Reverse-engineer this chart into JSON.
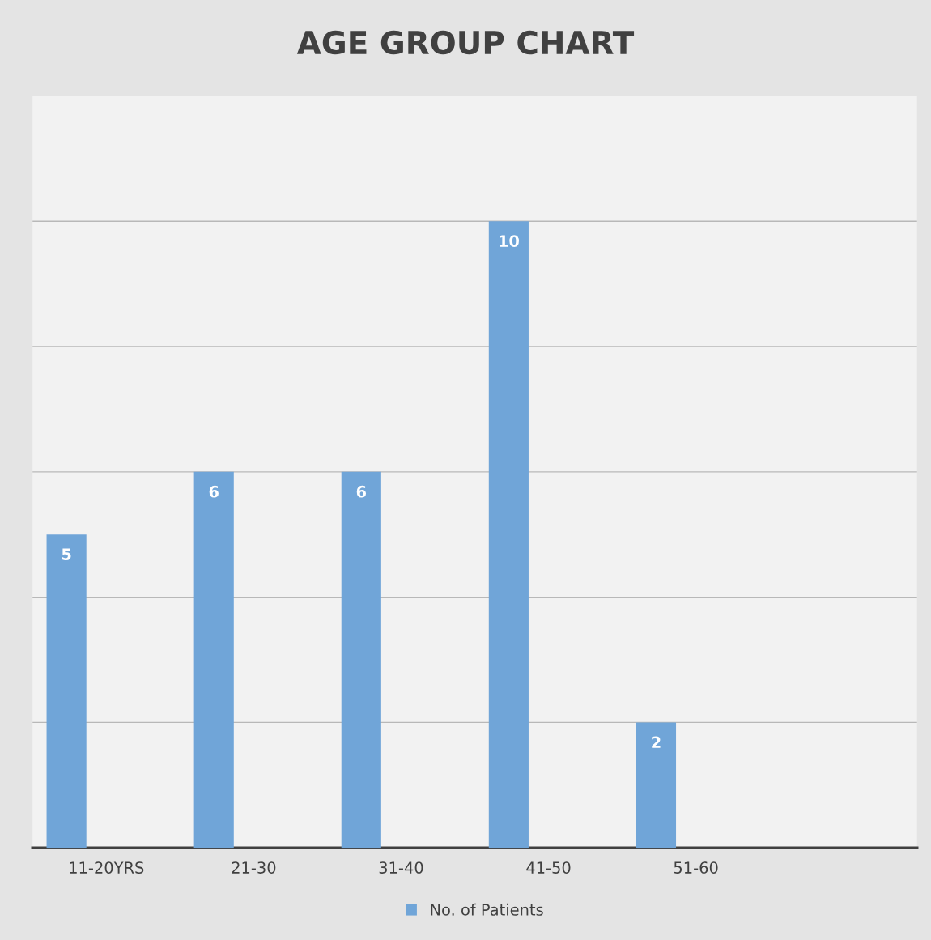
{
  "chart_data": {
    "type": "bar",
    "title": "AGE GROUP CHART",
    "categories": [
      "11-20YRS",
      "21-30",
      "31-40",
      "41-50",
      "51-60",
      null
    ],
    "series": [
      {
        "name": "No. of Patients",
        "color": "#70a5d8",
        "values": [
          5,
          6,
          6,
          10,
          2,
          null
        ]
      }
    ],
    "ylim": [
      0,
      12
    ],
    "yticks": [
      {
        "value": 0,
        "label": null
      },
      {
        "value": 2,
        "label": null
      },
      {
        "value": 4,
        "label": null
      },
      {
        "value": 6,
        "label": null
      },
      {
        "value": 8,
        "label": null
      },
      {
        "value": 10,
        "label": null
      },
      {
        "value": 12,
        "label": null
      }
    ],
    "grid": "y",
    "legend": "bottom",
    "data_labels": true
  }
}
